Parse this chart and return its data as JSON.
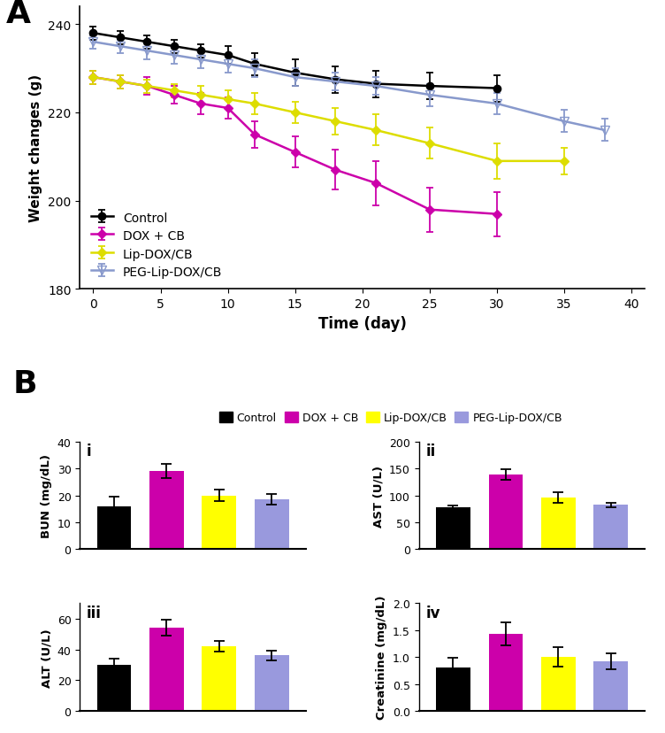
{
  "ctrl_x": [
    0,
    2,
    4,
    6,
    8,
    10,
    12,
    15,
    18,
    21,
    25,
    30
  ],
  "ctrl_y": [
    238,
    237,
    236,
    235,
    234,
    233,
    231,
    229,
    227.5,
    226.5,
    226,
    225.5
  ],
  "ctrl_e": [
    1.5,
    1.5,
    1.5,
    1.5,
    1.5,
    2,
    2.5,
    3,
    3,
    3,
    3,
    3
  ],
  "dox_x": [
    0,
    2,
    4,
    6,
    8,
    10,
    12,
    15,
    18,
    21,
    25,
    30
  ],
  "dox_y": [
    228,
    227,
    226,
    224,
    222,
    221,
    215,
    211,
    207,
    204,
    198,
    197
  ],
  "dox_e": [
    1.5,
    1.5,
    2,
    2,
    2.5,
    2.5,
    3,
    3.5,
    4.5,
    5,
    5,
    5
  ],
  "lip_x": [
    0,
    2,
    4,
    6,
    8,
    10,
    12,
    15,
    18,
    21,
    25,
    30,
    35
  ],
  "lip_y": [
    228,
    227,
    226,
    225,
    224,
    223,
    222,
    220,
    218,
    216,
    213,
    209,
    209
  ],
  "lip_e": [
    1.5,
    1.5,
    1.5,
    1.5,
    2,
    2,
    2.5,
    2.5,
    3,
    3.5,
    3.5,
    4,
    3
  ],
  "peg_x": [
    0,
    2,
    4,
    6,
    8,
    10,
    12,
    15,
    18,
    21,
    25,
    30,
    35,
    38
  ],
  "peg_y": [
    236,
    235,
    234,
    233,
    232,
    231,
    230,
    228,
    227,
    226,
    224,
    222,
    218,
    216
  ],
  "peg_e": [
    1.5,
    1.5,
    2,
    2,
    2,
    2,
    2,
    2,
    2,
    2,
    2.5,
    2.5,
    2.5,
    2.5
  ],
  "colors": {
    "control": "#000000",
    "dox": "#CC00AA",
    "lip": "#DDDD00",
    "peg": "#8899CC"
  },
  "bun_values": [
    16,
    29,
    20,
    18.5
  ],
  "bun_errors": [
    3.5,
    2.5,
    2,
    2
  ],
  "ast_values": [
    78,
    138,
    96,
    82
  ],
  "ast_errors": [
    3,
    10,
    10,
    4
  ],
  "alt_values": [
    30,
    54,
    42,
    36
  ],
  "alt_errors": [
    4,
    5,
    3.5,
    3
  ],
  "creatinine_values": [
    0.8,
    1.43,
    1.0,
    0.92
  ],
  "creatinine_errors": [
    0.18,
    0.22,
    0.18,
    0.15
  ],
  "bar_colors": [
    "#000000",
    "#CC00AA",
    "#FFFF00",
    "#9999DD"
  ],
  "bar_labels": [
    "Control",
    "DOX + CB",
    "Lip-DOX/CB",
    "PEG-Lip-DOX/CB"
  ],
  "xlabel_a": "Time (day)",
  "ylabel_a": "Weight changes (g)",
  "ylabel_bun": "BUN (mg/dL)",
  "ylabel_ast": "AST (U/L)",
  "ylabel_alt": "ALT (U/L)",
  "ylabel_creat": "Creatinine (mg/dL)",
  "label_i": "i",
  "label_ii": "ii",
  "label_iii": "iii",
  "label_iv": "iv"
}
